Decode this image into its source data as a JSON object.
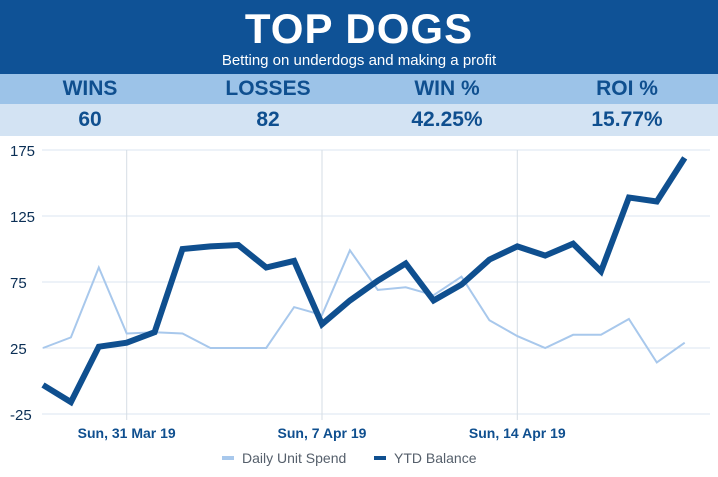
{
  "header": {
    "title": "TOP DOGS",
    "subtitle": "Betting on underdogs and making a profit"
  },
  "stats": [
    {
      "label": "WINS",
      "value": "60"
    },
    {
      "label": "LOSSES",
      "value": "82"
    },
    {
      "label": "WIN %",
      "value": "42.25%"
    },
    {
      "label": "ROI %",
      "value": "15.77%"
    }
  ],
  "colors": {
    "header_bg": "#0f5296",
    "labels_bg": "#9cc3e8",
    "values_bg": "#d3e3f3",
    "daily_line": "#a8c8ec",
    "ytd_line": "#0f4f8f"
  },
  "chart_data": {
    "type": "line",
    "ylim": [
      -25,
      175
    ],
    "yticks": [
      -25,
      25,
      75,
      125,
      175
    ],
    "xtick_labels": [
      {
        "index": 3,
        "label": "Sun, 31 Mar 19"
      },
      {
        "index": 10,
        "label": "Sun, 7 Apr 19"
      },
      {
        "index": 17,
        "label": "Sun, 14 Apr 19"
      }
    ],
    "grid": true,
    "legend_position": "bottom-center",
    "series": [
      {
        "name": "Daily Unit Spend",
        "color": "#a8c8ec",
        "values": [
          25,
          33,
          86,
          36,
          37,
          36,
          25,
          25,
          25,
          56,
          50,
          99,
          69,
          71,
          65,
          79,
          46,
          34,
          25,
          35,
          35,
          47,
          14,
          29
        ]
      },
      {
        "name": "YTD Balance",
        "color": "#0f4f8f",
        "values": [
          -3,
          -16,
          26,
          29,
          37,
          100,
          102,
          103,
          86,
          91,
          43,
          61,
          76,
          89,
          61,
          73,
          92,
          102,
          95,
          104,
          83,
          139,
          136,
          169
        ]
      }
    ]
  }
}
